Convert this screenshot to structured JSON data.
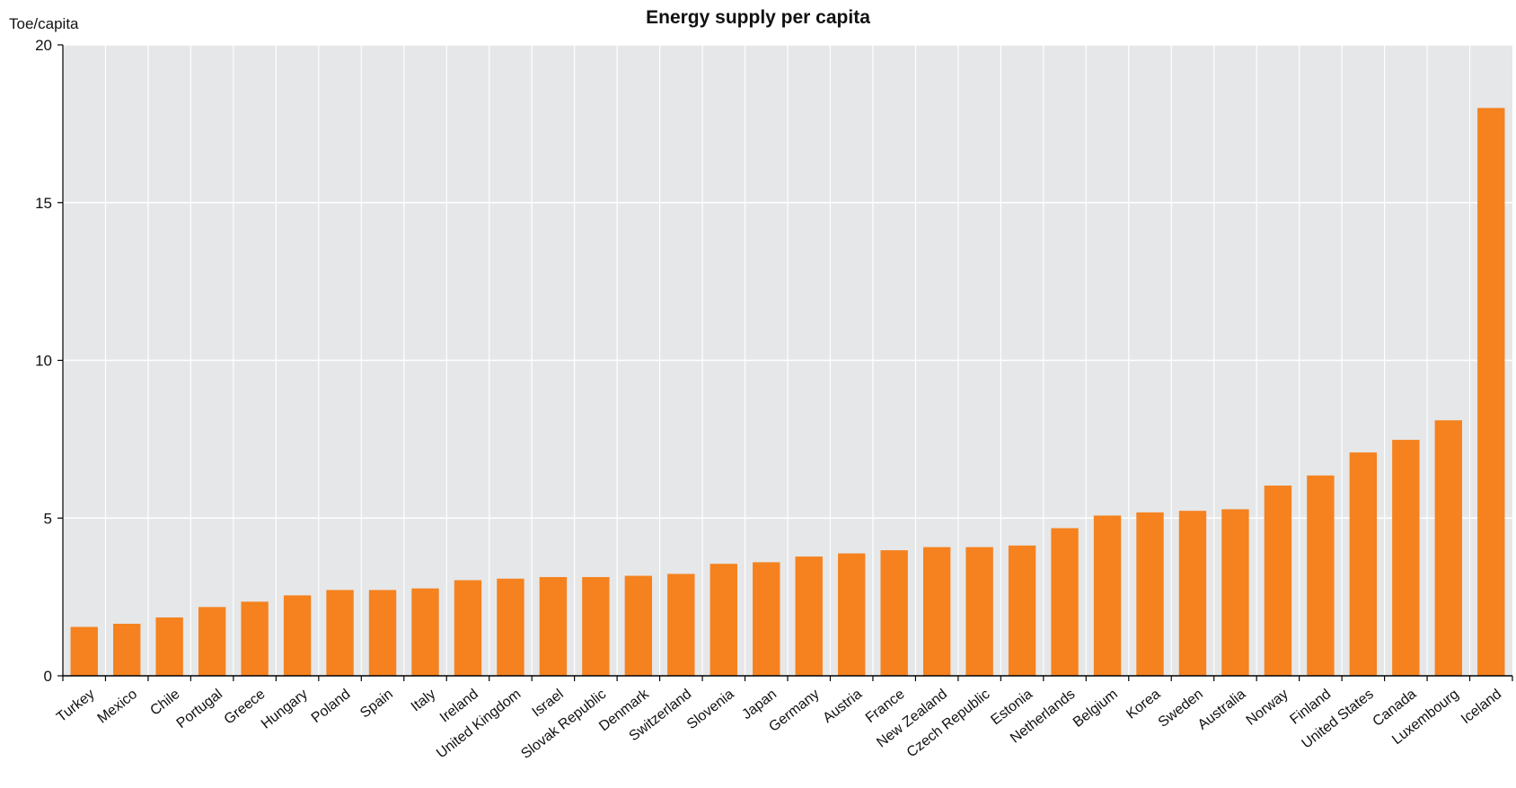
{
  "chart_data": {
    "type": "bar",
    "title": "Energy supply per capita",
    "ylabel": "Toe/capita",
    "xlabel": "",
    "ylim": [
      0,
      20
    ],
    "yticks": [
      0,
      5,
      10,
      15,
      20
    ],
    "grid": true,
    "colors": {
      "bar": "#F5821F",
      "plot_background": "#E6E7E8",
      "gridline": "#FFFFFF",
      "axis": "#000000"
    },
    "categories": [
      "Turkey",
      "Mexico",
      "Chile",
      "Portugal",
      "Greece",
      "Hungary",
      "Poland",
      "Spain",
      "Italy",
      "Ireland",
      "United Kingdom",
      "Israel",
      "Slovak Republic",
      "Denmark",
      "Switzerland",
      "Slovenia",
      "Japan",
      "Germany",
      "Austria",
      "France",
      "New Zealand",
      "Czech Republic",
      "Estonia",
      "Netherlands",
      "Belgium",
      "Korea",
      "Sweden",
      "Australia",
      "Norway",
      "Finland",
      "United States",
      "Canada",
      "Luxembourg",
      "Iceland"
    ],
    "values": [
      1.55,
      1.65,
      1.85,
      2.18,
      2.35,
      2.55,
      2.72,
      2.72,
      2.77,
      3.03,
      3.08,
      3.13,
      3.13,
      3.17,
      3.23,
      3.55,
      3.6,
      3.78,
      3.88,
      3.98,
      4.08,
      4.08,
      4.13,
      4.68,
      5.08,
      5.18,
      5.23,
      5.28,
      6.03,
      6.35,
      7.08,
      7.48,
      8.1,
      18.0
    ]
  }
}
